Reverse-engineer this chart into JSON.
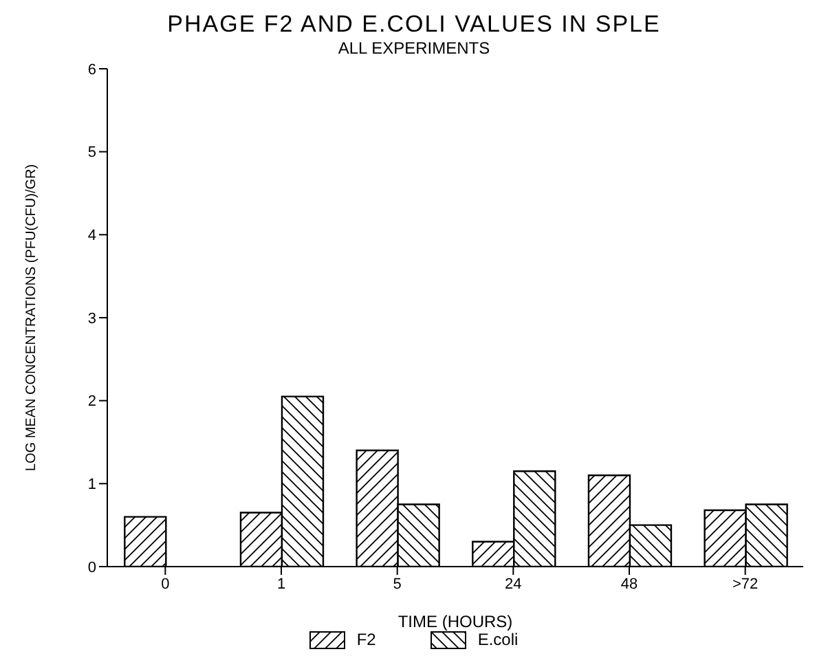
{
  "chart_data": {
    "type": "bar",
    "title": "PHAGE F2 AND E.COLI VALUES IN SPLE",
    "subtitle": "ALL EXPERIMENTS",
    "xlabel": "TIME (HOURS)",
    "ylabel": "LOG MEAN CONCENTRATIONS (PFU(CFU)/GR)",
    "categories": [
      "0",
      "1",
      "5",
      "24",
      "48",
      ">72"
    ],
    "series": [
      {
        "name": "F2",
        "color": "#000000",
        "values": [
          0.6,
          0.65,
          1.4,
          0.3,
          1.1,
          0.68
        ]
      },
      {
        "name": "E.coli",
        "color": "#000000",
        "values": [
          null,
          2.05,
          0.75,
          1.15,
          0.5,
          0.75
        ]
      }
    ],
    "ylim": [
      0,
      6
    ],
    "yticks": [
      0,
      1,
      2,
      3,
      4,
      5,
      6
    ],
    "grid": false,
    "legend": "bottom"
  }
}
